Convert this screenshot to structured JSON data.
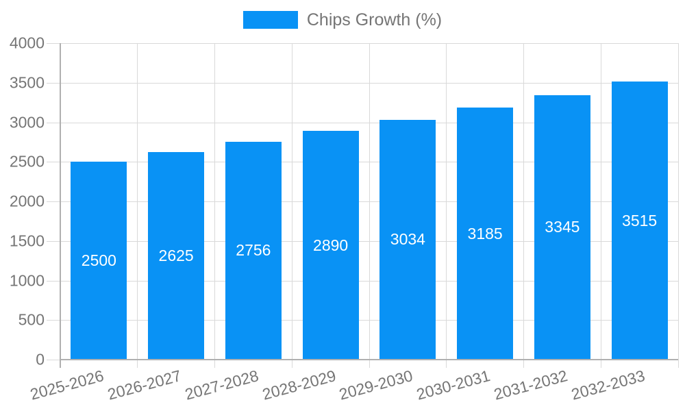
{
  "legend": {
    "label": "Chips Growth (%)"
  },
  "colors": {
    "bar": "#0992f5",
    "axis_text": "#757575",
    "bar_label_text": "#ffffff",
    "gridline": "#d9d9d9",
    "axis_line": "#b0b0b0",
    "background": "#ffffff"
  },
  "chart_data": {
    "type": "bar",
    "title": "Chips Growth (%)",
    "categories": [
      "2025-2026",
      "2026-2027",
      "2027-2028",
      "2028-2029",
      "2029-2030",
      "2030-2031",
      "2031-2032",
      "2032-2033"
    ],
    "series": [
      {
        "name": "Chips Growth (%)",
        "values": [
          2500,
          2625,
          2756,
          2890,
          3034,
          3185,
          3345,
          3515
        ]
      }
    ],
    "xlabel": "",
    "ylabel": "",
    "ylim": [
      0,
      4000
    ],
    "yticks": [
      0,
      500,
      1000,
      1500,
      2000,
      2500,
      3000,
      3500,
      4000
    ],
    "grid": "both",
    "legend_position": "top",
    "bar_value_labels": "inside-center",
    "x_label_rotation_deg": -15
  }
}
